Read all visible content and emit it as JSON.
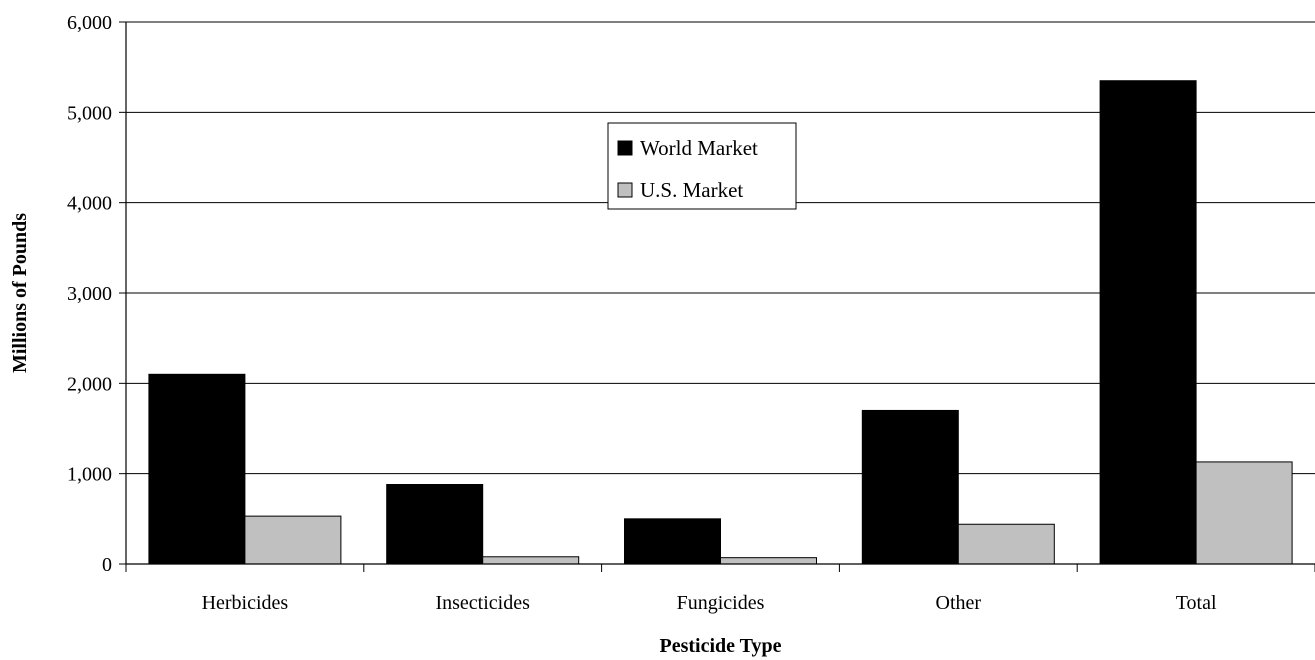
{
  "chart_data": {
    "type": "bar",
    "title": "",
    "xlabel": "Pesticide Type",
    "ylabel": "Millions of Pounds",
    "categories": [
      "Herbicides",
      "Insecticides",
      "Fungicides",
      "Other",
      "Total"
    ],
    "series": [
      {
        "name": "World Market",
        "values": [
          2100,
          880,
          500,
          1700,
          5350
        ],
        "color": "#000000"
      },
      {
        "name": "U.S. Market",
        "values": [
          530,
          80,
          70,
          440,
          1130
        ],
        "color": "#c0c0c0"
      }
    ],
    "ylim": [
      0,
      6000
    ],
    "yticks": [
      0,
      1000,
      2000,
      3000,
      4000,
      5000,
      6000
    ],
    "ytick_labels": [
      "0",
      "1,000",
      "2,000",
      "3,000",
      "4,000",
      "5,000",
      "6,000"
    ],
    "grid": true,
    "legend": "top-center"
  }
}
